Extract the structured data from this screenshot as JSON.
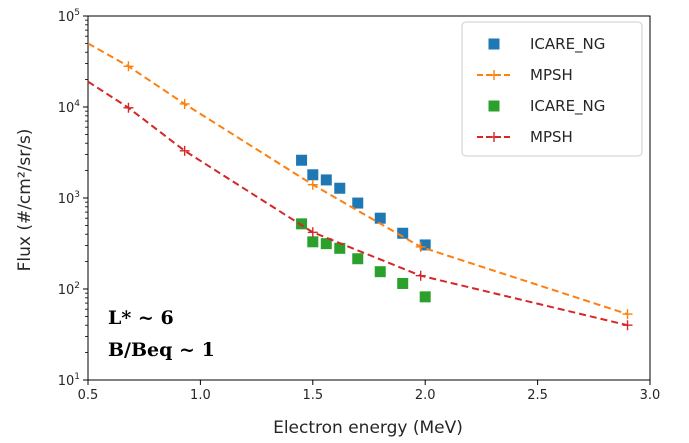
{
  "chart_data": {
    "type": "scatter",
    "xlabel": "Electron energy (MeV)",
    "ylabel": "Flux (#/cm²/sr/s)",
    "xlim": [
      0.5,
      3.0
    ],
    "ylim": [
      10,
      100000
    ],
    "yscale": "log",
    "grid": false,
    "legend_position": "top-right",
    "x_ticks": [
      {
        "value": 0.5,
        "label": "0.5"
      },
      {
        "value": 1.0,
        "label": "1.0"
      },
      {
        "value": 1.5,
        "label": "1.5"
      },
      {
        "value": 2.0,
        "label": "2.0"
      },
      {
        "value": 2.5,
        "label": "2.5"
      },
      {
        "value": 3.0,
        "label": "3.0"
      }
    ],
    "y_ticks": [
      {
        "value": 10,
        "base": "10",
        "exp": "1"
      },
      {
        "value": 100,
        "base": "10",
        "exp": "2"
      },
      {
        "value": 1000,
        "base": "10",
        "exp": "3"
      },
      {
        "value": 10000,
        "base": "10",
        "exp": "4"
      },
      {
        "value": 100000,
        "base": "10",
        "exp": "5"
      }
    ],
    "series": [
      {
        "name": "ICARE_NG",
        "kind": "markers",
        "color": "#1f77b4",
        "x": [
          1.45,
          1.5,
          1.56,
          1.62,
          1.7,
          1.8,
          1.9,
          2.0
        ],
        "y": [
          2600,
          1800,
          1580,
          1280,
          880,
          600,
          410,
          305
        ]
      },
      {
        "name": "MPSH",
        "kind": "dashed-line",
        "color": "#ff7f0e",
        "x": [
          0.5,
          0.68,
          0.93,
          1.5,
          1.98,
          2.9
        ],
        "y": [
          50000,
          28000,
          10800,
          1400,
          290,
          53
        ],
        "marker_x": [
          0.68,
          0.93,
          1.5,
          1.98,
          2.9
        ],
        "marker_y": [
          28000,
          10800,
          1400,
          290,
          53
        ]
      },
      {
        "name": "ICARE_NG",
        "kind": "markers",
        "color": "#2ca02c",
        "x": [
          1.45,
          1.5,
          1.56,
          1.62,
          1.7,
          1.8,
          1.9,
          2.0
        ],
        "y": [
          520,
          330,
          315,
          280,
          215,
          155,
          115,
          82
        ]
      },
      {
        "name": "MPSH",
        "kind": "dashed-line",
        "color": "#d62728",
        "x": [
          0.5,
          0.68,
          0.93,
          1.5,
          1.98,
          2.9
        ],
        "y": [
          19000,
          9800,
          3300,
          420,
          140,
          40
        ],
        "marker_x": [
          0.68,
          0.93,
          1.5,
          1.98,
          2.9
        ],
        "marker_y": [
          9800,
          3300,
          420,
          140,
          40
        ]
      }
    ],
    "annotations": [
      "L* ~ 6",
      "B/Beq ~ 1"
    ]
  }
}
